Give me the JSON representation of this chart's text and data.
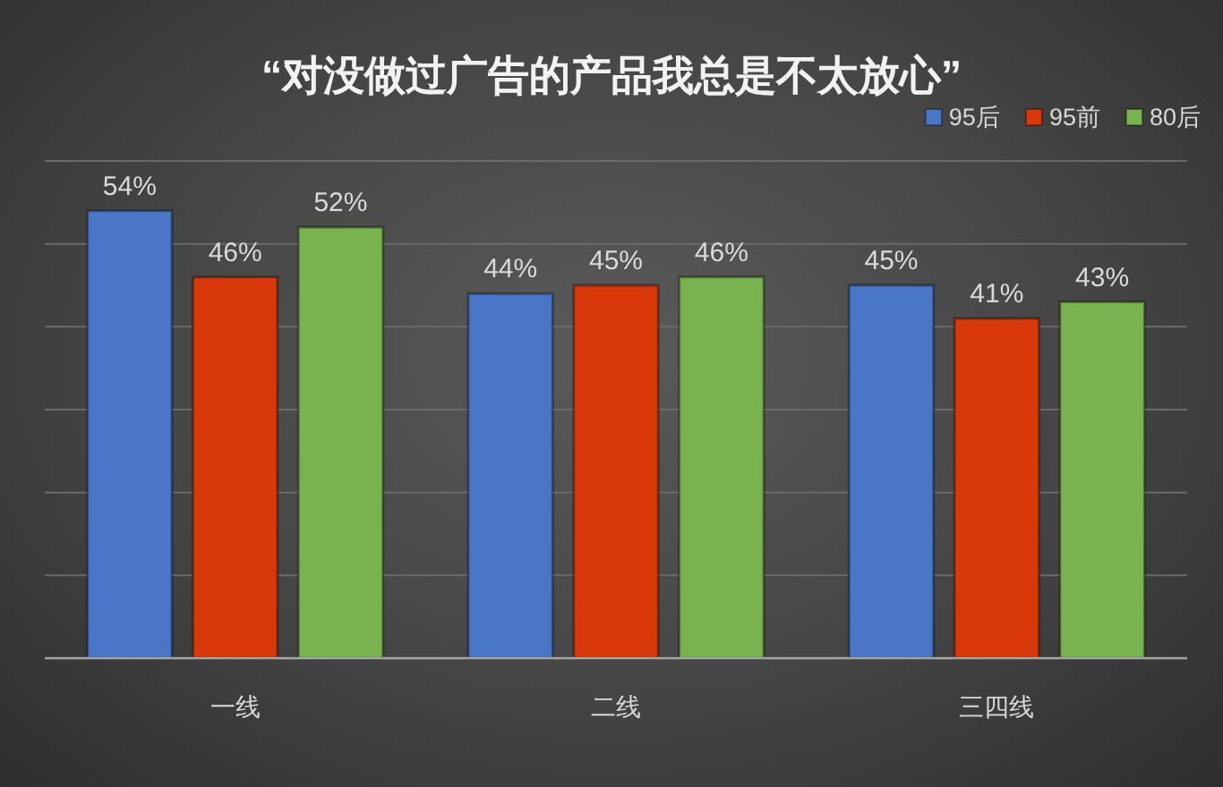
{
  "chart_data": {
    "type": "bar",
    "title": "“对没做过广告的产品我总是不太放心”",
    "categories": [
      "一线",
      "二线",
      "三四线"
    ],
    "series": [
      {
        "name": "95后",
        "color": "#4a76c8",
        "values": [
          54,
          44,
          45
        ],
        "value_labels": [
          "54%",
          "44%",
          "45%"
        ]
      },
      {
        "name": "95前",
        "color": "#d9380a",
        "values": [
          46,
          45,
          41
        ],
        "value_labels": [
          "46%",
          "45%",
          "41%"
        ]
      },
      {
        "name": "80后",
        "color": "#79b34f",
        "values": [
          52,
          46,
          43
        ],
        "value_labels": [
          "52%",
          "46%",
          "43%"
        ]
      }
    ],
    "ylim": [
      0,
      60
    ],
    "yticks": [
      {
        "value": 0,
        "label": null
      },
      {
        "value": 10,
        "label": null
      },
      {
        "value": 20,
        "label": null
      },
      {
        "value": 30,
        "label": null
      },
      {
        "value": 40,
        "label": null
      },
      {
        "value": 50,
        "label": null
      },
      {
        "value": 60,
        "label": null
      }
    ],
    "tick_labels": "x",
    "grid": "y",
    "legend": "top right"
  }
}
